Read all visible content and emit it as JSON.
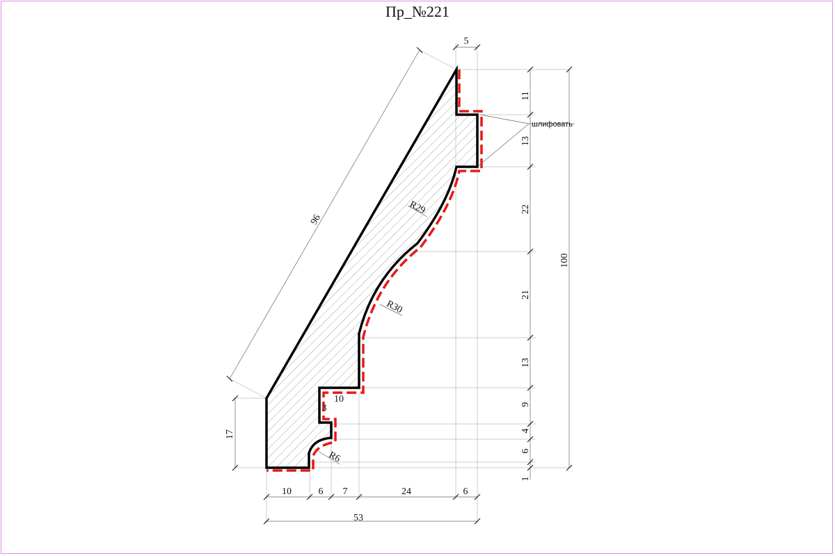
{
  "title": "Пр_№221",
  "note": "шлифовать",
  "radii": {
    "r29": "R29",
    "r30": "R30",
    "r6": "R6"
  },
  "dimensions": {
    "top_width": "5",
    "slope_length": "96",
    "total_height": "100",
    "left_height": "17",
    "right": [
      "11",
      "13",
      "22",
      "21",
      "13",
      "9",
      "4",
      "6",
      "1"
    ],
    "bottom": [
      "10",
      "6",
      "7",
      "24",
      "6"
    ],
    "overall_width": "53",
    "step_width": "10",
    "step_height": "3"
  },
  "colors": {
    "profile": "#000000",
    "sanding_line": "#e81818",
    "hatch": "#8a8a8a",
    "frame": "#e08ce0"
  }
}
